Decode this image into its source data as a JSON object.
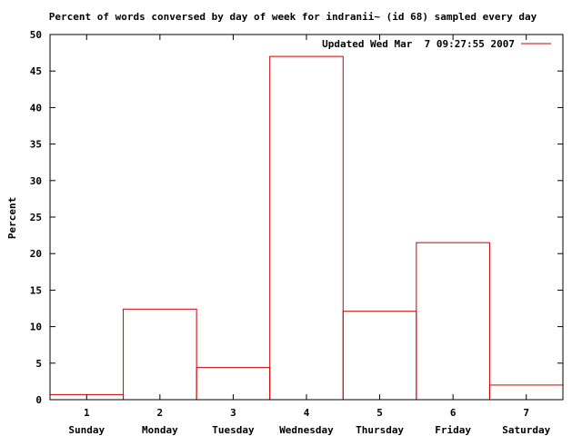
{
  "chart_data": {
    "type": "bar",
    "title": "Percent of words conversed by day of week for indranii~ (id 68) sampled every day",
    "ylabel": "Percent",
    "xlabel": "",
    "ylim": [
      0,
      50
    ],
    "y_ticks": [
      "0",
      "5",
      "10",
      "15",
      "20",
      "25",
      "30",
      "35",
      "40",
      "45",
      "50"
    ],
    "x_numbers": [
      "1",
      "2",
      "3",
      "4",
      "5",
      "6",
      "7"
    ],
    "categories": [
      "Sunday",
      "Monday",
      "Tuesday",
      "Wednesday",
      "Thursday",
      "Friday",
      "Saturday"
    ],
    "series": [
      {
        "name": "Updated Wed Mar  7 09:27:55 2007",
        "values": [
          0.7,
          12.4,
          4.4,
          47.0,
          12.1,
          21.5,
          2.0
        ]
      }
    ],
    "grid": false,
    "legend": "top-right",
    "colors": {
      "series": "#cc0000",
      "axis": "#000000",
      "background": "#ffffff"
    }
  }
}
